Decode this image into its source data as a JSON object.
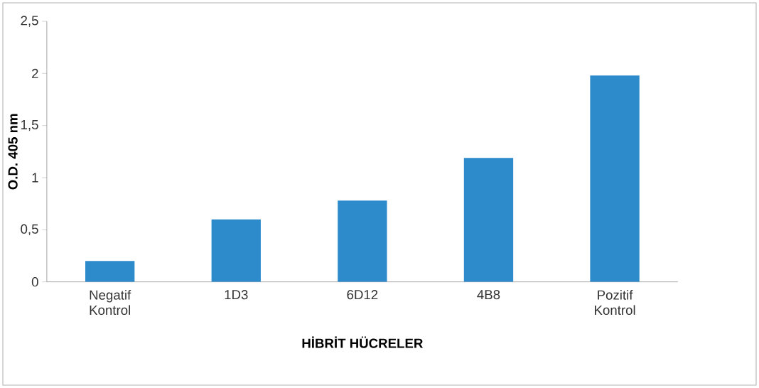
{
  "chart_data": {
    "type": "bar",
    "xlabel": "HİBRİT HÜCRELER",
    "ylabel": "O.D. 405 nm",
    "categories": [
      "Negatif Kontrol",
      "1D3",
      "6D12",
      "4B8",
      "Pozitif Kontrol"
    ],
    "values": [
      0.2,
      0.6,
      0.78,
      1.19,
      1.98
    ],
    "color": "#2e8bcb",
    "ylim": [
      0,
      2.5
    ],
    "yticks": [
      0,
      {
        "value": 0.5,
        "label": "0,5"
      },
      1,
      {
        "value": 1.5,
        "label": "1,5"
      },
      2,
      {
        "value": 2.5,
        "label": "2,5"
      }
    ],
    "grid": false
  }
}
